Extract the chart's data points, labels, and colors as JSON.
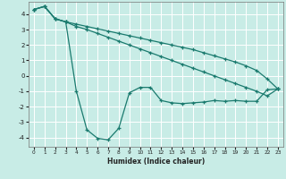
{
  "xlabel": "Humidex (Indice chaleur)",
  "xlim": [
    -0.5,
    23.5
  ],
  "ylim": [
    -4.6,
    4.8
  ],
  "background_color": "#c8ece6",
  "grid_color": "#ffffff",
  "line_color": "#1a7a6e",
  "xticks": [
    0,
    1,
    2,
    3,
    4,
    5,
    6,
    7,
    8,
    9,
    10,
    11,
    12,
    13,
    14,
    15,
    16,
    17,
    18,
    19,
    20,
    21,
    22,
    23
  ],
  "yticks": [
    -4,
    -3,
    -2,
    -1,
    0,
    1,
    2,
    3,
    4
  ],
  "line1_x": [
    0,
    1,
    2,
    3,
    4,
    5,
    6,
    7,
    8,
    9,
    10,
    11,
    12,
    13,
    14,
    15,
    16,
    17,
    18,
    19,
    20,
    21,
    22,
    23
  ],
  "line1_y": [
    4.3,
    4.5,
    3.7,
    3.5,
    3.35,
    3.2,
    3.05,
    2.9,
    2.75,
    2.6,
    2.45,
    2.3,
    2.15,
    2.0,
    1.85,
    1.7,
    1.5,
    1.3,
    1.1,
    0.9,
    0.65,
    0.35,
    -0.2,
    -0.85
  ],
  "line2_x": [
    0,
    1,
    2,
    3,
    4,
    5,
    6,
    7,
    8,
    9,
    10,
    11,
    12,
    13,
    14,
    15,
    16,
    17,
    18,
    19,
    20,
    21,
    22,
    23
  ],
  "line2_y": [
    4.3,
    4.5,
    3.7,
    3.5,
    3.2,
    3.0,
    2.75,
    2.5,
    2.25,
    2.0,
    1.75,
    1.5,
    1.25,
    1.0,
    0.75,
    0.5,
    0.25,
    0.0,
    -0.25,
    -0.5,
    -0.75,
    -1.0,
    -1.3,
    -0.85
  ],
  "line3_x": [
    0,
    1,
    2,
    3,
    4,
    5,
    6,
    7,
    8,
    9,
    10,
    11,
    12,
    13,
    14,
    15,
    16,
    17,
    18,
    19,
    20,
    21,
    22,
    23
  ],
  "line3_y": [
    4.3,
    4.5,
    3.7,
    3.5,
    -1.0,
    -3.5,
    -4.05,
    -4.15,
    -3.4,
    -1.1,
    -0.75,
    -0.75,
    -1.6,
    -1.75,
    -1.8,
    -1.75,
    -1.7,
    -1.6,
    -1.65,
    -1.6,
    -1.65,
    -1.65,
    -0.9,
    -0.85
  ]
}
